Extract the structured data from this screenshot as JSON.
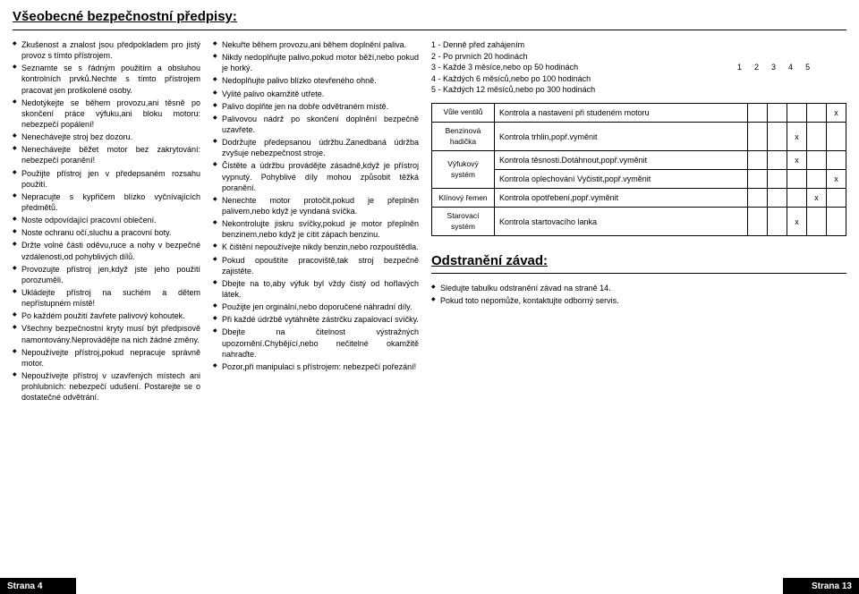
{
  "title": "Všeobecné bezpečnostní předpisy:",
  "col1": [
    "Zkušenost a znalost jsou předpokladem pro jistý provoz s tímto přístrojem.",
    "Seznamte se s řádným použitím a obsluhou kontrolních prvků.Nechte s tímto přístrojem pracovat jen proškolené osoby.",
    "Nedotýkejte se během provozu,ani těsně po skončení práce výfuku,ani bloku motoru: nebezpečí popálení!",
    "Nenechávejte stroj bez dozoru.",
    "Nenechávejte běžet motor bez zakrytování: nebezpečí poranění!",
    "Použijte přístroj jen v předepsaném rozsahu použití.",
    "Nepracujte s kypřičem blízko vyčnívajících předmětů.",
    "Noste odpovídající pracovní oblečení.",
    "Noste ochranu očí,sluchu a pracovní boty.",
    "Držte volné části oděvu,ruce a nohy v bezpečné vzdálenosti,od pohyblivých dílů.",
    "Provozujte přístroj jen,když jste jeho použití porozuměli.",
    "Ukládejte přístroj na suchém a dětem nepřístupném místě!",
    "Po každém použití žavřete palivový kohoutek.",
    "Všechny bezpečnostní kryty musí být předpisově namontovány.Neprovádějte na nich žádné změny.",
    "Nepoužívejte přístroj,pokud nepracuje správně motor.",
    "Nepoužívejte přístroj v uzavřených místech ani prohlubních: nebezpečí udušení. Postarejte se o dostatečné odvětrání."
  ],
  "col2": [
    "Nekuřte během provozu,ani během doplnění paliva.",
    "Nikdy nedoplňujte palivo,pokud motor běží,nebo pokud je horký.",
    "Nedoplňujte palivo blízko otevřeného ohně.",
    "Vylité palivo okamžitě utřete.",
    "Palivo doplňte jen na dobře odvětraném místě.",
    "Palivovou nádrž po skončení doplnění bezpečně uzavřete.",
    "Dodržujte předepsanou údržbu.Zanedbaná údržba zvyšuje nebezpečnost stroje.",
    "Čistěte a údržbu provádějte zásadně,když je přístroj vypnutý. Pohyblivé díly mohou způsobit těžká poranění.",
    "Nenechte motor protočit,pokud je přeplněn palivem,nebo když je vyndaná svíčka.",
    "Nekontrolujte jiskru svíčky,pokud je motor přeplněn benzinem,nebo když je cítit zápach benzinu.",
    "K čištění nepoužívejte nikdy benzin,nebo rozpouštědla.",
    "Pokud opouštíte pracoviště,tak stroj bezpečně zajistěte.",
    "Dbejte na to,aby výfuk byl vždy čistý od hořlavých látek.",
    "Použijte jen orginální,nebo doporučené náhradní díly.",
    "Při každé údržbě vytáhněte zástrčku zapalovací svíčky.",
    "Dbejte na čitelnost výstražných upozornění.Chybějící,nebo nečitelné okamžitě nahraďte.",
    "Pozor,při manipulaci s přístrojem: nebezpečí pořezání!"
  ],
  "legend": {
    "items": [
      "1 - Denně před zahájením",
      "2 - Po prvních 20 hodinách",
      "3 - Každé 3 měsíce,nebo op 50 hodinách",
      "4 - Každých 6 měsíců,nebo po 100 hodinách",
      "5 - Každých 12 měsíců,nebo po 300 hodinách"
    ],
    "nums": [
      "1",
      "2",
      "3",
      "4",
      "5"
    ]
  },
  "table": [
    {
      "label": "Vůle ventilů",
      "desc": "Kontrola a nastavení při studeném motoru",
      "marks": [
        "",
        "",
        "",
        "",
        "x"
      ]
    },
    {
      "label": "Benzinová hadička",
      "desc": "Kontrola trhlin,popř.vyměnit",
      "marks": [
        "",
        "",
        "x",
        "",
        ""
      ]
    },
    {
      "label": "Výfukový systém",
      "desc": "Kontrola těsnosti.Dotáhnout,popř.vyměnit",
      "marks": [
        "",
        "",
        "x",
        "",
        ""
      ],
      "rowspan": 2
    },
    {
      "label": "",
      "desc": "Kontrola oplechování Vyčistit,popř.vyměnit",
      "marks": [
        "",
        "",
        "",
        "",
        "x"
      ]
    },
    {
      "label": "Klínový řemen",
      "desc": "Kontrola opotřebení,popř.vyměnit",
      "marks": [
        "",
        "",
        "",
        "x",
        ""
      ]
    },
    {
      "label": "Starovací systém",
      "desc": "Kontrola startovacího lanka",
      "marks": [
        "",
        "",
        "x",
        "",
        ""
      ]
    }
  ],
  "troubleshoot": {
    "title": "Odstranění závad:",
    "items": [
      "Sledujte tabulku odstranění závad na straně 14.",
      "Pokud toto nepomůže, kontaktujte odborný servis."
    ]
  },
  "footer": {
    "left": "Strana 4",
    "right": "Strana 13"
  }
}
